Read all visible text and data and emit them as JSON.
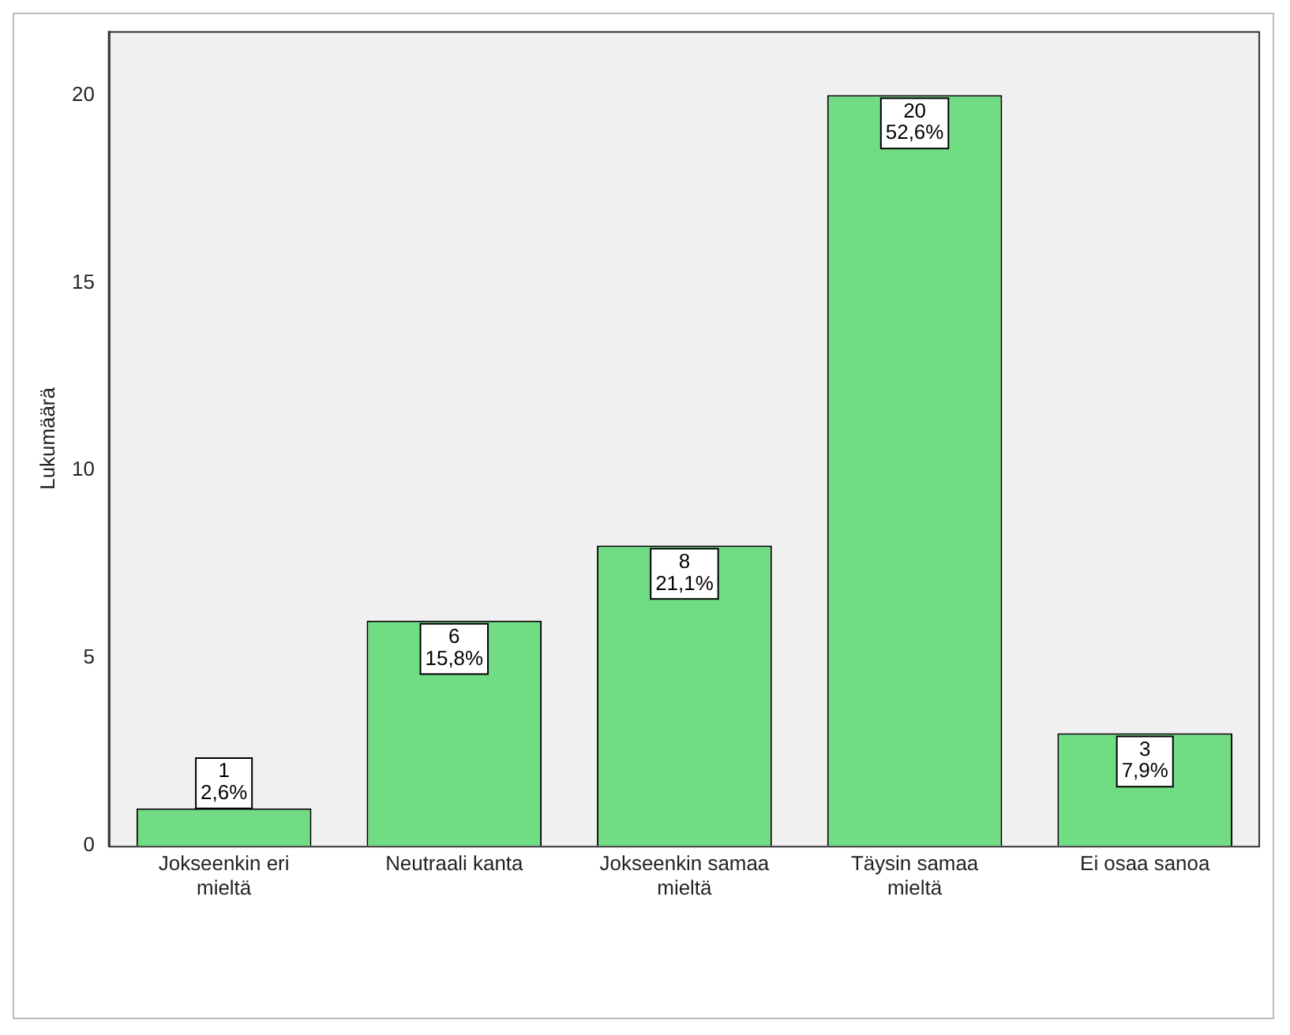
{
  "chart_data": {
    "type": "bar",
    "ylabel": "Lukumäärä",
    "categories": [
      "Jokseenkin eri mieltä",
      "Neutraali kanta",
      "Jokseenkin samaa mieltä",
      "Täysin samaa mieltä",
      "Ei osaa sanoa"
    ],
    "values": [
      1,
      6,
      8,
      20,
      3
    ],
    "color": "#70dc84",
    "value_labels": [
      "1\n2,6%",
      "6\n15,8%",
      "8\n21,1%",
      "20\n52,6%",
      "3\n7,9%"
    ],
    "ylim": [
      0,
      21.7
    ],
    "yticks": [
      0,
      5,
      10,
      15,
      20
    ],
    "grid": false,
    "legend": false
  }
}
